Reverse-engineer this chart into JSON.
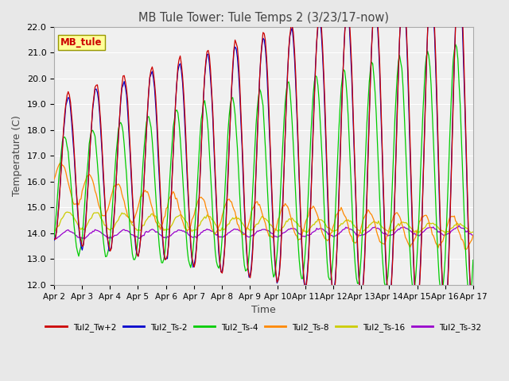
{
  "title": "MB Tule Tower: Tule Temps 2 (3/23/17-now)",
  "xlabel": "Time",
  "ylabel": "Temperature (C)",
  "ylim": [
    12.0,
    22.0
  ],
  "yticks": [
    12.0,
    13.0,
    14.0,
    15.0,
    16.0,
    17.0,
    18.0,
    19.0,
    20.0,
    21.0,
    22.0
  ],
  "xlim_start": 0,
  "xlim_end": 15,
  "xtick_labels": [
    "Apr 2",
    "Apr 3",
    "Apr 4",
    "Apr 5",
    "Apr 6",
    "Apr 7",
    "Apr 8",
    "Apr 9",
    "Apr 10",
    "Apr 11",
    "Apr 12",
    "Apr 13",
    "Apr 14",
    "Apr 15",
    "Apr 16",
    "Apr 17"
  ],
  "series_colors": [
    "#cc0000",
    "#0000cc",
    "#00cc00",
    "#ff8800",
    "#cccc00",
    "#9900cc"
  ],
  "series_labels": [
    "Tul2_Tw+2",
    "Tul2_Ts-2",
    "Tul2_Ts-4",
    "Tul2_Ts-8",
    "Tul2_Ts-16",
    "Tul2_Ts-32"
  ],
  "legend_box_color": "#ffff99",
  "legend_box_text": "MB_tule",
  "legend_box_text_color": "#cc0000",
  "background_color": "#e8e8e8",
  "plot_bg_color": "#f0f0f0",
  "grid_color": "#ffffff",
  "title_color": "#444444"
}
